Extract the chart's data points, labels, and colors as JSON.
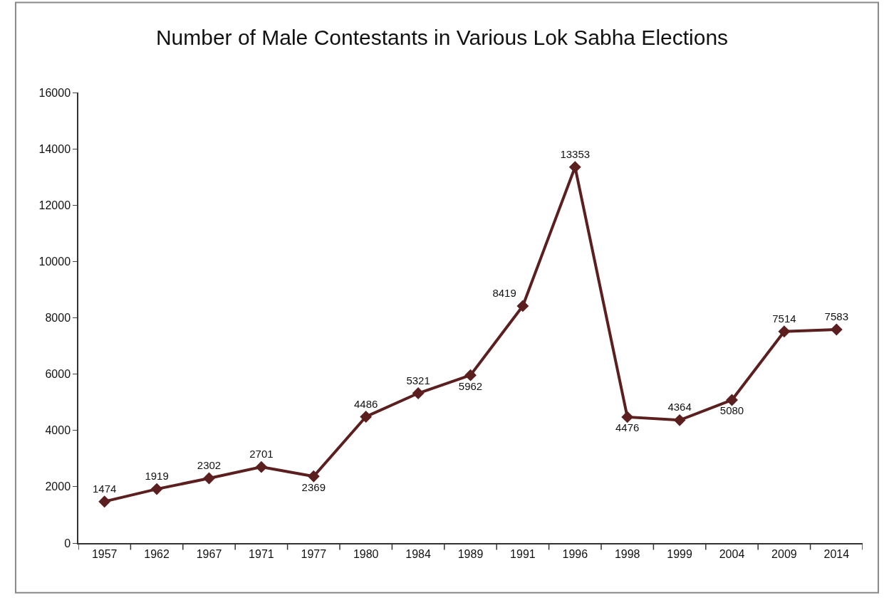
{
  "chart_data": {
    "type": "line",
    "title": "Number of Male Contestants in Various Lok Sabha Elections",
    "categories": [
      "1957",
      "1962",
      "1967",
      "1971",
      "1977",
      "1980",
      "1984",
      "1989",
      "1991",
      "1996",
      "1998",
      "1999",
      "2004",
      "2009",
      "2014"
    ],
    "series": [
      {
        "color": "#5c1f1f",
        "values": [
          1474,
          1919,
          2302,
          2701,
          2369,
          4486,
          5321,
          5962,
          8419,
          13353,
          4476,
          4364,
          5080,
          7514,
          7583
        ]
      }
    ],
    "ylim": [
      0,
      16000
    ],
    "yticks": [
      0,
      2000,
      4000,
      6000,
      8000,
      10000,
      12000,
      14000,
      16000
    ],
    "marker": "diamond",
    "line_style": "solid",
    "data_labels": true
  }
}
